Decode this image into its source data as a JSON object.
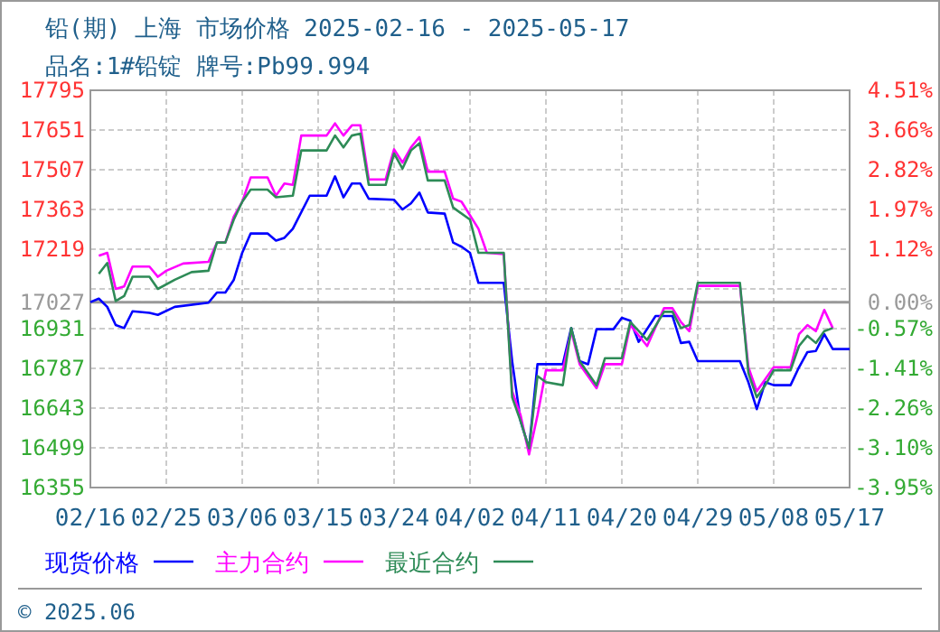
{
  "chart_data": {
    "type": "line",
    "title": "铅(期) 上海 市场价格 2025-02-16 - 2025-05-17",
    "subtitle": "品名:1#铅锭 牌号:Pb99.994",
    "annotations": [
      "© 2025.06"
    ],
    "xlim": [
      "2025-02-16",
      "2025-05-17"
    ],
    "xticks": [
      {
        "value": "2025-02-16",
        "label": "02/16"
      },
      {
        "value": "2025-02-25",
        "label": "02/25"
      },
      {
        "value": "2025-03-06",
        "label": "03/06"
      },
      {
        "value": "2025-03-15",
        "label": "03/15"
      },
      {
        "value": "2025-03-24",
        "label": "03/24"
      },
      {
        "value": "2025-04-02",
        "label": "04/02"
      },
      {
        "value": "2025-04-11",
        "label": "04/11"
      },
      {
        "value": "2025-04-20",
        "label": "04/20"
      },
      {
        "value": "2025-04-29",
        "label": "04/29"
      },
      {
        "value": "2025-05-08",
        "label": "05/08"
      },
      {
        "value": "2025-05-17",
        "label": "05/17"
      }
    ],
    "ylim": [
      16355,
      17795
    ],
    "yticks": [
      16355,
      16499,
      16643,
      16787,
      16931,
      17027,
      {
        "value": 17075,
        "label": null
      },
      17219,
      17363,
      17507,
      17651,
      17795
    ],
    "y2lim": [
      -3.95,
      4.51
    ],
    "y2ticks": [
      {
        "value": 4.51,
        "label": "4.51%"
      },
      {
        "value": 3.66,
        "label": "3.66%"
      },
      {
        "value": 2.82,
        "label": "2.82%"
      },
      {
        "value": 1.97,
        "label": "1.97%"
      },
      {
        "value": 1.12,
        "label": "1.12%"
      },
      {
        "value": 0,
        "label": "0.00%"
      },
      {
        "value": -0.57,
        "label": "-0.57%"
      },
      {
        "value": -1.41,
        "label": "-1.41%"
      },
      {
        "value": -2.26,
        "label": "-2.26%"
      },
      {
        "value": -3.1,
        "label": "-3.10%"
      },
      {
        "value": -3.95,
        "label": "-3.95%"
      }
    ],
    "ref_lines": [
      {
        "axis": "y",
        "value": 17027,
        "color": "#999999",
        "line_style": "solid"
      }
    ],
    "grid": true,
    "legend": "bottom",
    "marker": "none",
    "line_style": "solid",
    "series": [
      {
        "name": "现货价格",
        "color": "#0000ff",
        "x": [
          "2025-02-16",
          "2025-02-17",
          "2025-02-18",
          "2025-02-19",
          "2025-02-20",
          "2025-02-21",
          "2025-02-23",
          "2025-02-24",
          "2025-02-26",
          "2025-03-02",
          "2025-03-03",
          "2025-03-04",
          "2025-03-05",
          "2025-03-06",
          "2025-03-07",
          "2025-03-09",
          "2025-03-10",
          "2025-03-11",
          "2025-03-12",
          "2025-03-14",
          "2025-03-16",
          "2025-03-17",
          "2025-03-18",
          "2025-03-19",
          "2025-03-20",
          "2025-03-21",
          "2025-03-24",
          "2025-03-25",
          "2025-03-26",
          "2025-03-27",
          "2025-03-28",
          "2025-03-30",
          "2025-03-31",
          "2025-04-01",
          "2025-04-02",
          "2025-04-03",
          "2025-04-06",
          "2025-04-07",
          "2025-04-08",
          "2025-04-09",
          "2025-04-10",
          "2025-04-13",
          "2025-04-14",
          "2025-04-15",
          "2025-04-16",
          "2025-04-17",
          "2025-04-19",
          "2025-04-20",
          "2025-04-21",
          "2025-04-22",
          "2025-04-24",
          "2025-04-26",
          "2025-04-27",
          "2025-04-28",
          "2025-04-29",
          "2025-05-04",
          "2025-05-05",
          "2025-05-06",
          "2025-05-07",
          "2025-05-08",
          "2025-05-10",
          "2025-05-11",
          "2025-05-12",
          "2025-05-13",
          "2025-05-14",
          "2025-05-15",
          "2025-05-17"
        ],
        "values": [
          17027,
          17040,
          17010,
          16944,
          16933,
          16994,
          16988,
          16981,
          17010,
          17025,
          17062,
          17062,
          17108,
          17206,
          17276,
          17276,
          17250,
          17260,
          17293,
          17413,
          17413,
          17483,
          17407,
          17457,
          17457,
          17402,
          17398,
          17363,
          17385,
          17424,
          17352,
          17348,
          17243,
          17228,
          17206,
          17097,
          17097,
          16813,
          16595,
          16497,
          16802,
          16802,
          16933,
          16813,
          16802,
          16929,
          16929,
          16970,
          16960,
          16883,
          16977,
          16977,
          16879,
          16883,
          16813,
          16813,
          16737,
          16639,
          16737,
          16726,
          16726,
          16791,
          16846,
          16850,
          16911,
          16857,
          16857
        ]
      },
      {
        "name": "主力合约",
        "color": "#ff00ff",
        "x": [
          "2025-02-17",
          "2025-02-18",
          "2025-02-19",
          "2025-02-20",
          "2025-02-21",
          "2025-02-23",
          "2025-02-24",
          "2025-02-25",
          "2025-02-27",
          "2025-03-02",
          "2025-03-03",
          "2025-03-04",
          "2025-03-05",
          "2025-03-06",
          "2025-03-07",
          "2025-03-09",
          "2025-03-10",
          "2025-03-11",
          "2025-03-12",
          "2025-03-13",
          "2025-03-16",
          "2025-03-17",
          "2025-03-18",
          "2025-03-19",
          "2025-03-20",
          "2025-03-21",
          "2025-03-23",
          "2025-03-24",
          "2025-03-25",
          "2025-03-26",
          "2025-03-27",
          "2025-03-28",
          "2025-03-30",
          "2025-03-31",
          "2025-04-01",
          "2025-04-03",
          "2025-04-04",
          "2025-04-06",
          "2025-04-07",
          "2025-04-08",
          "2025-04-09",
          "2025-04-10",
          "2025-04-11",
          "2025-04-13",
          "2025-04-14",
          "2025-04-15",
          "2025-04-17",
          "2025-04-18",
          "2025-04-20",
          "2025-04-21",
          "2025-04-23",
          "2025-04-25",
          "2025-04-26",
          "2025-04-27",
          "2025-04-28",
          "2025-04-29",
          "2025-05-04",
          "2025-05-05",
          "2025-05-06",
          "2025-05-07",
          "2025-05-08",
          "2025-05-10",
          "2025-05-11",
          "2025-05-12",
          "2025-05-13",
          "2025-05-14",
          "2025-05-15"
        ],
        "values": [
          17195,
          17206,
          17075,
          17084,
          17156,
          17156,
          17119,
          17141,
          17167,
          17173,
          17243,
          17243,
          17337,
          17391,
          17479,
          17479,
          17413,
          17457,
          17452,
          17631,
          17631,
          17675,
          17631,
          17668,
          17668,
          17472,
          17472,
          17581,
          17533,
          17588,
          17625,
          17500,
          17500,
          17402,
          17391,
          17293,
          17206,
          17201,
          16704,
          16617,
          16475,
          16617,
          16780,
          16780,
          16922,
          16802,
          16715,
          16802,
          16802,
          16944,
          16868,
          17005,
          17005,
          16955,
          16922,
          17086,
          17086,
          16791,
          16704,
          16748,
          16791,
          16791,
          16911,
          16944,
          16922,
          16999,
          16933
        ]
      },
      {
        "name": "最近合约",
        "color": "#2e8b57",
        "x": [
          "2025-02-17",
          "2025-02-18",
          "2025-02-19",
          "2025-02-20",
          "2025-02-21",
          "2025-02-23",
          "2025-02-24",
          "2025-02-26",
          "2025-02-28",
          "2025-03-02",
          "2025-03-03",
          "2025-03-04",
          "2025-03-05",
          "2025-03-06",
          "2025-03-07",
          "2025-03-09",
          "2025-03-10",
          "2025-03-12",
          "2025-03-13",
          "2025-03-16",
          "2025-03-17",
          "2025-03-18",
          "2025-03-19",
          "2025-03-20",
          "2025-03-21",
          "2025-03-23",
          "2025-03-24",
          "2025-03-25",
          "2025-03-26",
          "2025-03-27",
          "2025-03-28",
          "2025-03-30",
          "2025-03-31",
          "2025-04-02",
          "2025-04-03",
          "2025-04-04",
          "2025-04-06",
          "2025-04-07",
          "2025-04-08",
          "2025-04-09",
          "2025-04-10",
          "2025-04-11",
          "2025-04-13",
          "2025-04-14",
          "2025-04-15",
          "2025-04-17",
          "2025-04-18",
          "2025-04-20",
          "2025-04-21",
          "2025-04-23",
          "2025-04-25",
          "2025-04-26",
          "2025-04-27",
          "2025-04-28",
          "2025-04-29",
          "2025-05-04",
          "2025-05-05",
          "2025-05-06",
          "2025-05-07",
          "2025-05-08",
          "2025-05-10",
          "2025-05-11",
          "2025-05-12",
          "2025-05-13",
          "2025-05-14",
          "2025-05-15"
        ],
        "values": [
          17130,
          17169,
          17031,
          17049,
          17119,
          17119,
          17075,
          17108,
          17136,
          17141,
          17243,
          17243,
          17326,
          17391,
          17435,
          17435,
          17407,
          17413,
          17577,
          17577,
          17631,
          17588,
          17631,
          17638,
          17452,
          17452,
          17566,
          17511,
          17577,
          17603,
          17468,
          17468,
          17370,
          17326,
          17206,
          17206,
          17206,
          16682,
          16595,
          16497,
          16759,
          16737,
          16726,
          16933,
          16813,
          16726,
          16824,
          16824,
          16955,
          16890,
          16992,
          16992,
          16933,
          16944,
          17097,
          17097,
          16770,
          16682,
          16726,
          16780,
          16780,
          16868,
          16905,
          16879,
          16922,
          16933
        ]
      }
    ]
  }
}
